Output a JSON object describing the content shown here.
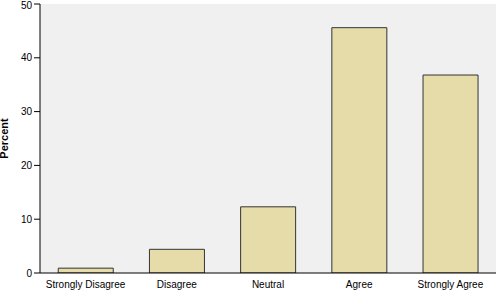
{
  "chart_data": {
    "type": "bar",
    "y_label": "Percent",
    "categories": [
      "Strongly Disagree",
      "Disagree",
      "Neutral",
      "Agree",
      "Strongly Agree"
    ],
    "values": [
      0.9,
      4.4,
      12.3,
      45.6,
      36.8
    ],
    "color": "#e6dcaa",
    "ylim": [
      0,
      50
    ],
    "yticks": [
      0,
      10,
      20,
      30,
      40,
      50
    ],
    "grid": false
  }
}
